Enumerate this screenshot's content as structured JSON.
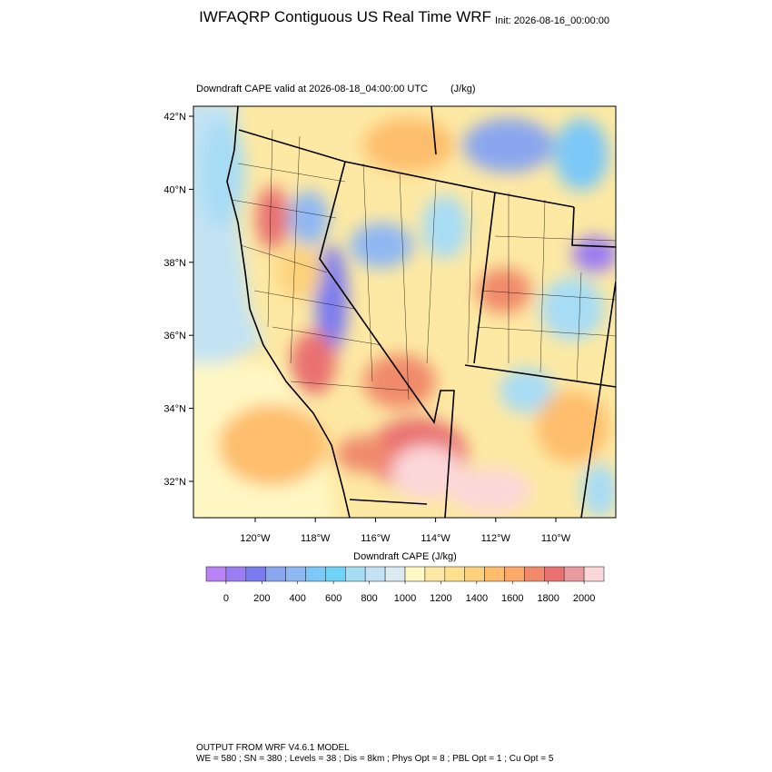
{
  "header": {
    "title": "IWFAQRP Contiguous US Real Time WRF",
    "init": "Init: 2026-08-16_00:00:00"
  },
  "plot": {
    "subtitle": "Downdraft CAPE valid at 2026-08-18_04:00:00 UTC",
    "units": "(J/kg)",
    "lat_ticks": [
      {
        "value": 42,
        "label": "42°N"
      },
      {
        "value": 40,
        "label": "40°N"
      },
      {
        "value": 38,
        "label": "38°N"
      },
      {
        "value": 36,
        "label": "36°N"
      },
      {
        "value": 34,
        "label": "34°N"
      },
      {
        "value": 32,
        "label": "32°N"
      }
    ],
    "lon_ticks": [
      {
        "value": -120,
        "label": "120°W"
      },
      {
        "value": -118,
        "label": "118°W"
      },
      {
        "value": -116,
        "label": "116°W"
      },
      {
        "value": -114,
        "label": "114°W"
      },
      {
        "value": -112,
        "label": "112°W"
      },
      {
        "value": -110,
        "label": "110°W"
      }
    ]
  },
  "colorbar": {
    "title": "Downdraft CAPE  (J/kg)",
    "ticks": [
      0,
      200,
      400,
      600,
      800,
      1000,
      1200,
      1400,
      1600,
      1800,
      2000
    ],
    "colors": [
      "#b983f5",
      "#9b7df2",
      "#7b7bef",
      "#8aa6ee",
      "#8fb8f3",
      "#7cc8f7",
      "#6fd2f7",
      "#a7dcf5",
      "#c3e3f4",
      "#dcebf2",
      "#fff8c4",
      "#fde9a3",
      "#fde08e",
      "#fdd17c",
      "#fdbd6c",
      "#fca866",
      "#f08a6a",
      "#e9716f",
      "#e99ba0",
      "#fcd7d9"
    ]
  },
  "footer": {
    "line1": "OUTPUT FROM WRF V4.6.1 MODEL",
    "line2": "WE = 580 ; SN = 380 ; Levels = 38 ; Dis = 8km ; Phys Opt = 8 ; PBL Opt = 1 ; Cu Opt = 5"
  }
}
